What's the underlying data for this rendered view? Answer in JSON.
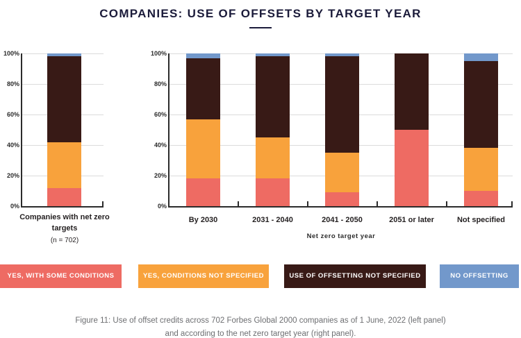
{
  "title": "COMPANIES: USE OF OFFSETS BY TARGET YEAR",
  "colors": {
    "red": "#EE6B63",
    "orange": "#F8A23C",
    "brown": "#381A16",
    "blue": "#7298CB",
    "title_navy": "#1B1B3A",
    "axis": "#2B2B2B",
    "gridline": "#DBDBDB",
    "caption_gray": "#6D6E71"
  },
  "chart_data": [
    {
      "type": "bar",
      "stacked": true,
      "panel": "left",
      "categories": [
        "Companies with net zero targets"
      ],
      "category_note": "(n = 702)",
      "xlabel": "",
      "ylabel": "",
      "ylim": [
        0,
        100
      ],
      "yticks": [
        "0%",
        "20%",
        "40%",
        "60%",
        "80%",
        "100%"
      ],
      "grid": true,
      "series": [
        {
          "name": "Yes, with some conditions",
          "color": "#EE6B63",
          "values": [
            12
          ]
        },
        {
          "name": "Yes, conditions not specified",
          "color": "#F8A23C",
          "values": [
            30
          ]
        },
        {
          "name": "Use of offsetting not specified",
          "color": "#381A16",
          "values": [
            56
          ]
        },
        {
          "name": "No offsetting",
          "color": "#7298CB",
          "values": [
            2
          ]
        }
      ]
    },
    {
      "type": "bar",
      "stacked": true,
      "panel": "right",
      "categories": [
        "By 2030",
        "2031 - 2040",
        "2041 - 2050",
        "2051 or later",
        "Not specified"
      ],
      "xlabel": "Net zero target year",
      "ylabel": "",
      "ylim": [
        0,
        100
      ],
      "yticks": [
        "0%",
        "20%",
        "40%",
        "60%",
        "80%",
        "100%"
      ],
      "grid": true,
      "series": [
        {
          "name": "Yes, with some conditions",
          "color": "#EE6B63",
          "values": [
            18,
            18,
            9,
            50,
            10
          ]
        },
        {
          "name": "Yes, conditions not specified",
          "color": "#F8A23C",
          "values": [
            39,
            27,
            26,
            0,
            28
          ]
        },
        {
          "name": "Use of offsetting not specified",
          "color": "#38A",
          "values": [
            40,
            53,
            63,
            50,
            57
          ]
        },
        {
          "name": "No offsetting",
          "color": "#7298CB",
          "values": [
            3,
            2,
            2,
            0,
            5
          ]
        }
      ]
    }
  ],
  "legend": [
    {
      "label": "YES, WITH SOME CONDITIONS",
      "color": "#EE6B63"
    },
    {
      "label": "YES, CONDITIONS NOT SPECIFIED",
      "color": "#F8A23C"
    },
    {
      "label": "USE OF OFFSETTING NOT SPECIFIED",
      "color": "#381A16"
    },
    {
      "label": "NO OFFSETTING",
      "color": "#7298CB"
    }
  ],
  "caption": {
    "line1": "Figure 11: Use of offset credits across 702 Forbes Global 2000 companies as of 1 June, 2022 (left panel)",
    "line2": "and according to the net zero target year (right panel)."
  }
}
